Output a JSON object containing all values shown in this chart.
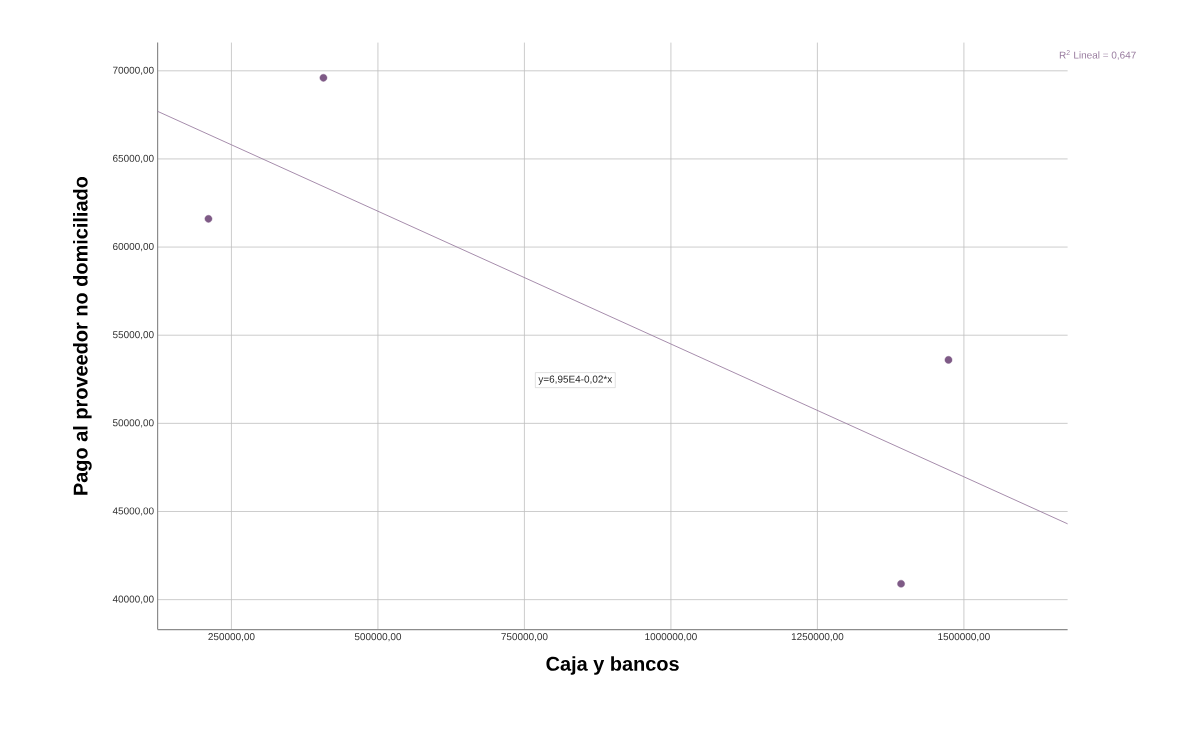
{
  "chart_data": {
    "type": "scatter",
    "xlabel": "Caja y bancos",
    "ylabel": "Pago al proveedor no domiciliado",
    "annotations": [
      "y=6,95E4-0,02*x",
      "R$^{2}$ Lineal = 0,647"
    ],
    "xlim": [
      124000,
      1677000
    ],
    "ylim": [
      38300,
      71600
    ],
    "xticks": [
      {
        "value": 250000,
        "label": "250000,00"
      },
      {
        "value": 500000,
        "label": "500000,00"
      },
      {
        "value": 750000,
        "label": "750000,00"
      },
      {
        "value": 1000000,
        "label": "1000000,00"
      },
      {
        "value": 1250000,
        "label": "1250000,00"
      },
      {
        "value": 1500000,
        "label": "1500000,00"
      }
    ],
    "yticks": [
      {
        "value": 40000,
        "label": "40000,00"
      },
      {
        "value": 45000,
        "label": "45000,00"
      },
      {
        "value": 50000,
        "label": "50000,00"
      },
      {
        "value": 55000,
        "label": "55000,00"
      },
      {
        "value": 60000,
        "label": "60000,00"
      },
      {
        "value": 65000,
        "label": "65000,00"
      },
      {
        "value": 70000,
        "label": "70000,00"
      }
    ],
    "grid": true,
    "series": [
      {
        "marker": "circle",
        "color": "#7e5a86",
        "x": [
          210800,
          407000,
          1392800,
          1473700
        ],
        "values": [
          61600,
          69600,
          40900,
          53600
        ]
      },
      {
        "type": "line",
        "marker": "none",
        "color": "#9c7fa2",
        "x": [
          124000,
          1677000
        ],
        "values": [
          67700,
          44300
        ]
      }
    ]
  }
}
